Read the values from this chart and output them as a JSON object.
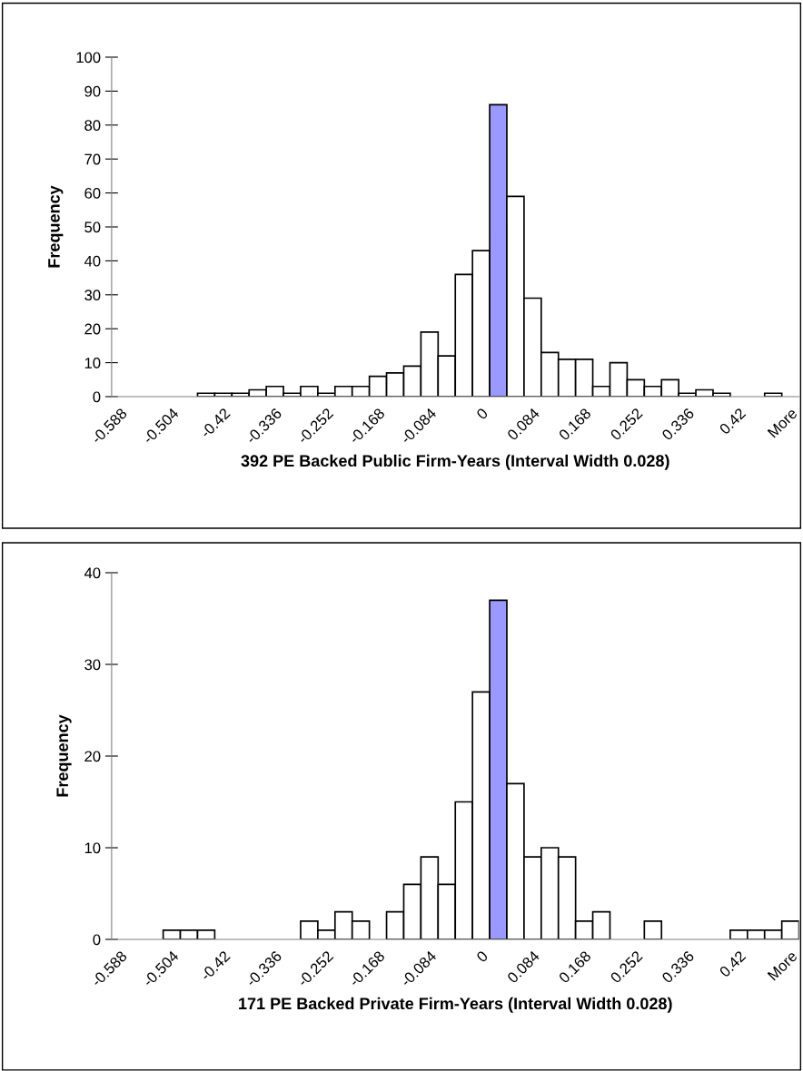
{
  "chart_data": [
    {
      "type": "bar",
      "xlabel": "392 PE Backed Public Firm-Years (Interval Width 0.028)",
      "ylabel": "Frequency",
      "categories": [
        "-0.588",
        null,
        null,
        "-0.504",
        null,
        null,
        "-0.42",
        null,
        null,
        "-0.336",
        null,
        null,
        "-0.252",
        null,
        null,
        "-0.168",
        null,
        null,
        "-0.084",
        null,
        null,
        "0",
        null,
        null,
        "0.084",
        null,
        null,
        "0.168",
        null,
        null,
        "0.252",
        null,
        null,
        "0.336",
        null,
        null,
        "0.42",
        null,
        null,
        "More"
      ],
      "values": [
        0,
        0,
        0,
        0,
        0,
        1,
        1,
        1,
        2,
        3,
        1,
        3,
        1,
        3,
        3,
        6,
        7,
        9,
        19,
        12,
        36,
        43,
        86,
        59,
        29,
        13,
        11,
        11,
        3,
        10,
        5,
        3,
        5,
        1,
        2,
        1,
        0,
        0,
        1,
        0
      ],
      "colors": [
        "#ffffff",
        "#ffffff",
        "#ffffff",
        "#ffffff",
        "#ffffff",
        "#ffffff",
        "#ffffff",
        "#ffffff",
        "#ffffff",
        "#ffffff",
        "#ffffff",
        "#ffffff",
        "#ffffff",
        "#ffffff",
        "#ffffff",
        "#ffffff",
        "#ffffff",
        "#ffffff",
        "#ffffff",
        "#ffffff",
        "#ffffff",
        "#ffffff",
        "#9999ff",
        "#ffffff",
        "#ffffff",
        "#ffffff",
        "#ffffff",
        "#ffffff",
        "#ffffff",
        "#ffffff",
        "#ffffff",
        "#ffffff",
        "#ffffff",
        "#ffffff",
        "#ffffff",
        "#ffffff",
        "#ffffff",
        "#ffffff",
        "#ffffff",
        "#ffffff"
      ],
      "ylim": [
        0,
        100
      ],
      "yticks": [
        0,
        10,
        20,
        30,
        40,
        50,
        60,
        70,
        80,
        90,
        100
      ],
      "grid": false,
      "legend": false
    },
    {
      "type": "bar",
      "xlabel": "171 PE Backed Private Firm-Years (Interval Width 0.028)",
      "ylabel": "Frequency",
      "categories": [
        "-0.588",
        null,
        null,
        "-0.504",
        null,
        null,
        "-0.42",
        null,
        null,
        "-0.336",
        null,
        null,
        "-0.252",
        null,
        null,
        "-0.168",
        null,
        null,
        "-0.084",
        null,
        null,
        "0",
        null,
        null,
        "0.084",
        null,
        null,
        "0.168",
        null,
        null,
        "0.252",
        null,
        null,
        "0.336",
        null,
        null,
        "0.42",
        null,
        null,
        "More"
      ],
      "values": [
        0,
        0,
        0,
        1,
        1,
        1,
        0,
        0,
        0,
        0,
        0,
        2,
        1,
        3,
        2,
        0,
        3,
        6,
        9,
        6,
        15,
        27,
        37,
        17,
        9,
        10,
        9,
        2,
        3,
        0,
        0,
        2,
        0,
        0,
        0,
        0,
        1,
        1,
        1,
        2
      ],
      "colors": [
        "#ffffff",
        "#ffffff",
        "#ffffff",
        "#ffffff",
        "#ffffff",
        "#ffffff",
        "#ffffff",
        "#ffffff",
        "#ffffff",
        "#ffffff",
        "#ffffff",
        "#ffffff",
        "#ffffff",
        "#ffffff",
        "#ffffff",
        "#ffffff",
        "#ffffff",
        "#ffffff",
        "#ffffff",
        "#ffffff",
        "#ffffff",
        "#ffffff",
        "#9999ff",
        "#ffffff",
        "#ffffff",
        "#ffffff",
        "#ffffff",
        "#ffffff",
        "#ffffff",
        "#ffffff",
        "#ffffff",
        "#ffffff",
        "#ffffff",
        "#ffffff",
        "#ffffff",
        "#ffffff",
        "#ffffff",
        "#ffffff",
        "#ffffff",
        "#ffffff"
      ],
      "ylim": [
        0,
        40
      ],
      "yticks": [
        0,
        10,
        20,
        30,
        40
      ],
      "grid": false,
      "legend": false
    }
  ]
}
